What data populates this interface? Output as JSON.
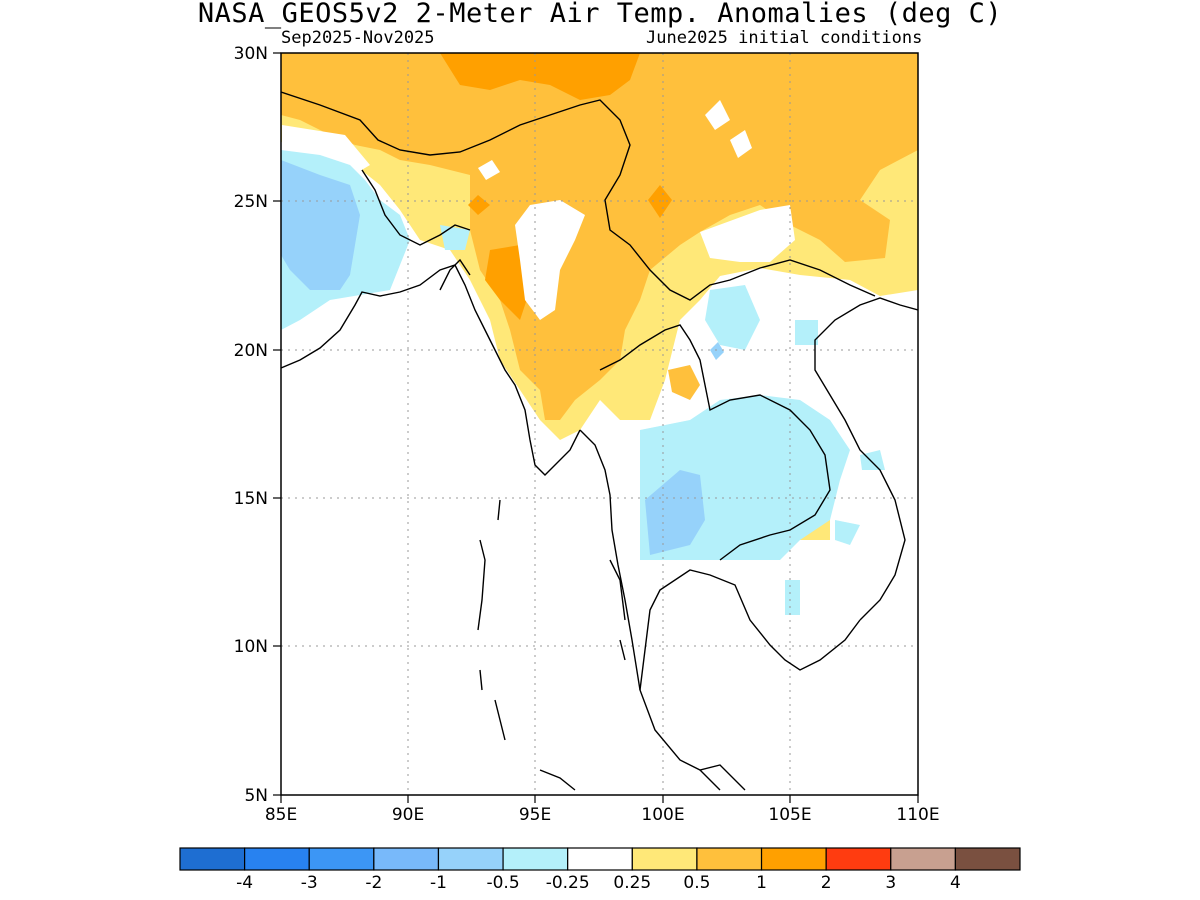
{
  "title": "NASA_GEOS5v2 2-Meter Air Temp. Anomalies (deg C)",
  "subtitle_left": "Sep2025-Nov2025",
  "subtitle_right": "June2025 initial conditions",
  "map": {
    "lon_range": [
      85,
      110
    ],
    "lat_range": [
      5,
      30
    ],
    "lon_ticks": [
      "85E",
      "90E",
      "95E",
      "100E",
      "105E",
      "110E"
    ],
    "lat_ticks": [
      "30N",
      "25N",
      "20N",
      "15N",
      "10N",
      "5N"
    ],
    "grid": "dotted"
  },
  "colorbar": {
    "colors": [
      "#1e6ed2",
      "#2882f0",
      "#3c96f5",
      "#78b9fa",
      "#96d2fa",
      "#b4f0fa",
      "#ffffff",
      "#ffe878",
      "#ffc03c",
      "#ffa000",
      "#ff3c10",
      "#c8a090",
      "#7a5040"
    ],
    "labels": [
      "-4",
      "-3",
      "-2",
      "-1",
      "-0.5",
      "-0.25",
      "0.25",
      "0.5",
      "1",
      "2",
      "3",
      "4"
    ]
  }
}
